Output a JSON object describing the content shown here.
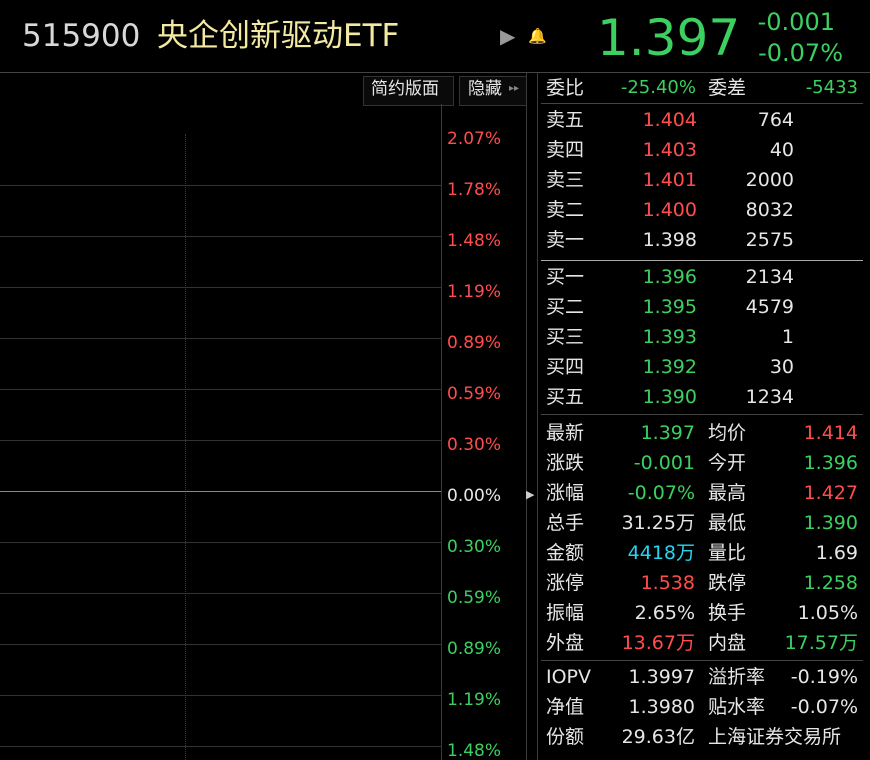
{
  "header": {
    "code": "515900",
    "name": "央企创新驱动ETF",
    "price": "1.397",
    "change": "-0.001",
    "change_pct": "-0.07%"
  },
  "toolbar": {
    "buttons": [
      "简约版面",
      "隐藏"
    ]
  },
  "chart": {
    "axis_labels": [
      "2.07%",
      "1.78%",
      "1.48%",
      "1.19%",
      "0.89%",
      "0.59%",
      "0.30%",
      "0.00%",
      "0.30%",
      "0.59%",
      "0.89%",
      "1.19%",
      "1.48%"
    ]
  },
  "order_book": {
    "summary": [
      {
        "label": "委比",
        "value": "-25.40%"
      },
      {
        "label": "委差",
        "value": "-5433"
      }
    ],
    "asks": [
      {
        "label": "卖五",
        "price": "1.404",
        "volume": "764"
      },
      {
        "label": "卖四",
        "price": "1.403",
        "volume": "40"
      },
      {
        "label": "卖三",
        "price": "1.401",
        "volume": "2000"
      },
      {
        "label": "卖二",
        "price": "1.400",
        "volume": "8032"
      },
      {
        "label": "卖一",
        "price": "1.398",
        "volume": "2575"
      }
    ],
    "bids": [
      {
        "label": "买一",
        "price": "1.396",
        "volume": "2134"
      },
      {
        "label": "买二",
        "price": "1.395",
        "volume": "4579"
      },
      {
        "label": "买三",
        "price": "1.393",
        "volume": "1"
      },
      {
        "label": "买四",
        "price": "1.392",
        "volume": "30"
      },
      {
        "label": "买五",
        "price": "1.390",
        "volume": "1234"
      }
    ]
  },
  "stats": [
    [
      {
        "label": "最新",
        "value": "1.397"
      },
      {
        "label": "均价",
        "value": "1.414"
      }
    ],
    [
      {
        "label": "涨跌",
        "value": "-0.001"
      },
      {
        "label": "今开",
        "value": "1.396"
      }
    ],
    [
      {
        "label": "涨幅",
        "value": "-0.07%"
      },
      {
        "label": "最高",
        "value": "1.427"
      }
    ],
    [
      {
        "label": "总手",
        "value": "31.25万"
      },
      {
        "label": "最低",
        "value": "1.390"
      }
    ],
    [
      {
        "label": "金额",
        "value": "4418万"
      },
      {
        "label": "量比",
        "value": "1.69"
      }
    ],
    [
      {
        "label": "涨停",
        "value": "1.538"
      },
      {
        "label": "跌停",
        "value": "1.258"
      }
    ],
    [
      {
        "label": "振幅",
        "value": "2.65%"
      },
      {
        "label": "换手",
        "value": "1.05%"
      }
    ],
    [
      {
        "label": "外盘",
        "value": "13.67万"
      },
      {
        "label": "内盘",
        "value": "17.57万"
      }
    ]
  ],
  "fund_info": [
    [
      {
        "label": "IOPV",
        "value": "1.3997"
      },
      {
        "label": "溢折率",
        "value": "-0.19%"
      }
    ],
    [
      {
        "label": "净值",
        "value": "1.3980"
      },
      {
        "label": "贴水率",
        "value": "-0.07%"
      }
    ],
    [
      {
        "label": "份额",
        "value": "29.63亿"
      },
      {
        "label": "上海证券交易所"
      }
    ]
  ]
}
